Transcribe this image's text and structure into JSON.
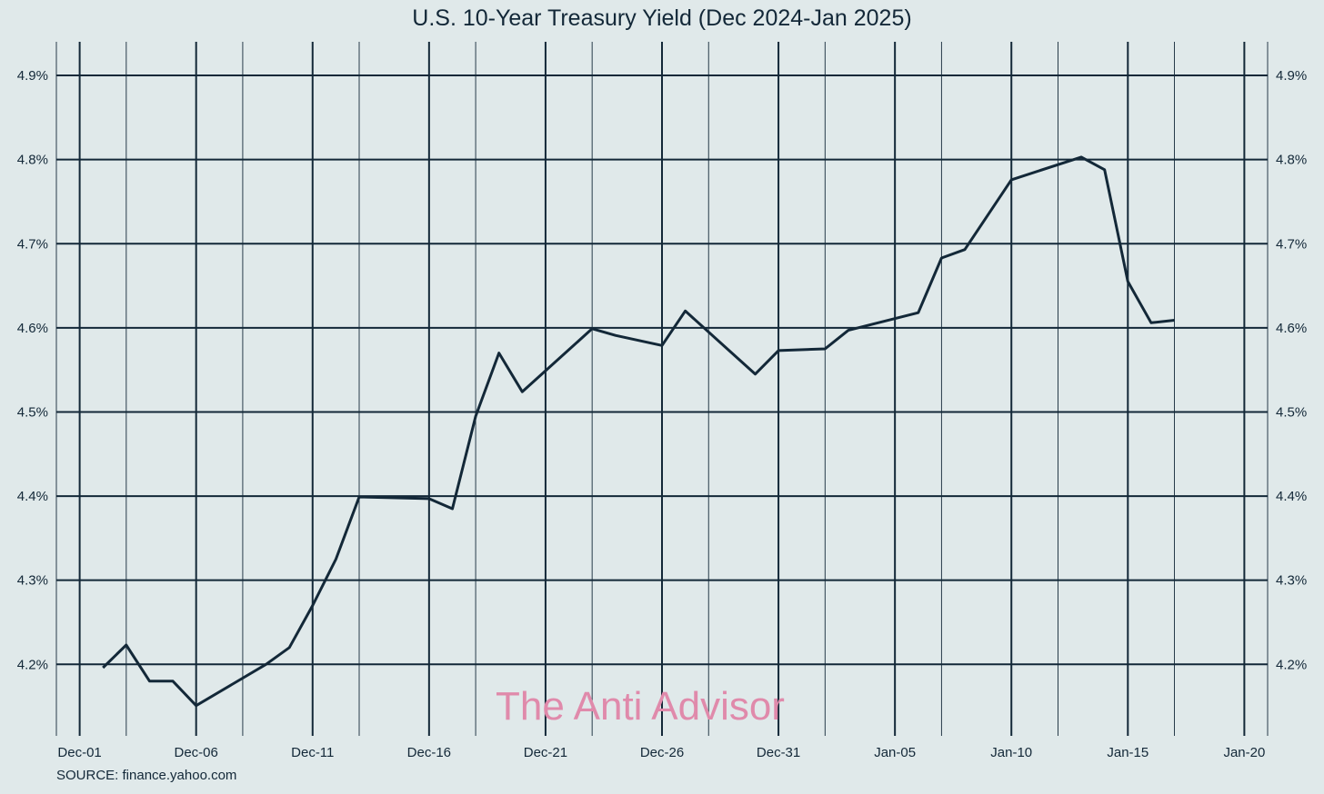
{
  "chart_data": {
    "type": "line",
    "title": "U.S. 10-Year Treasury Yield (Dec 2024-Jan 2025)",
    "xlabel": "",
    "ylabel": "",
    "source": "SOURCE: finance.yahoo.com",
    "watermark": "The Anti Advisor",
    "ylim": [
      4.115,
      4.94
    ],
    "xlim": [
      "2024-11-30",
      "2025-01-21"
    ],
    "y_ticks": [
      4.2,
      4.3,
      4.4,
      4.5,
      4.6,
      4.7,
      4.8,
      4.9
    ],
    "y_tick_labels": [
      "4.2%",
      "4.3%",
      "4.4%",
      "4.5%",
      "4.6%",
      "4.7%",
      "4.8%",
      "4.9%"
    ],
    "x_ticks": [
      "2024-12-01",
      "2024-12-06",
      "2024-12-11",
      "2024-12-16",
      "2024-12-21",
      "2024-12-26",
      "2024-12-31",
      "2025-01-05",
      "2025-01-10",
      "2025-01-15",
      "2025-01-20"
    ],
    "x_tick_labels": [
      "Dec-01",
      "Dec-06",
      "Dec-11",
      "Dec-16",
      "Dec-21",
      "Dec-26",
      "Dec-31",
      "Jan-05",
      "Jan-10",
      "Jan-15",
      "Jan-20"
    ],
    "grid": true,
    "y_axis_labels_both_sides": true,
    "colors": {
      "background": "#e0e9ea",
      "line": "#132838",
      "grid": "#132838",
      "watermark": "#e08aab"
    },
    "series": [
      {
        "points": [
          {
            "x": "2024-12-02",
            "y": 4.196
          },
          {
            "x": "2024-12-03",
            "y": 4.223
          },
          {
            "x": "2024-12-04",
            "y": 4.18
          },
          {
            "x": "2024-12-05",
            "y": 4.18
          },
          {
            "x": "2024-12-06",
            "y": 4.151
          },
          {
            "x": "2024-12-09",
            "y": 4.2
          },
          {
            "x": "2024-12-10",
            "y": 4.22
          },
          {
            "x": "2024-12-11",
            "y": 4.27
          },
          {
            "x": "2024-12-12",
            "y": 4.325
          },
          {
            "x": "2024-12-13",
            "y": 4.399
          },
          {
            "x": "2024-12-16",
            "y": 4.397
          },
          {
            "x": "2024-12-17",
            "y": 4.385
          },
          {
            "x": "2024-12-18",
            "y": 4.495
          },
          {
            "x": "2024-12-19",
            "y": 4.57
          },
          {
            "x": "2024-12-20",
            "y": 4.524
          },
          {
            "x": "2024-12-23",
            "y": 4.599
          },
          {
            "x": "2024-12-24",
            "y": 4.591
          },
          {
            "x": "2024-12-26",
            "y": 4.579
          },
          {
            "x": "2024-12-27",
            "y": 4.62
          },
          {
            "x": "2024-12-30",
            "y": 4.545
          },
          {
            "x": "2024-12-31",
            "y": 4.573
          },
          {
            "x": "2025-01-02",
            "y": 4.575
          },
          {
            "x": "2025-01-03",
            "y": 4.597
          },
          {
            "x": "2025-01-06",
            "y": 4.618
          },
          {
            "x": "2025-01-07",
            "y": 4.683
          },
          {
            "x": "2025-01-08",
            "y": 4.693
          },
          {
            "x": "2025-01-10",
            "y": 4.776
          },
          {
            "x": "2025-01-13",
            "y": 4.803
          },
          {
            "x": "2025-01-14",
            "y": 4.788
          },
          {
            "x": "2025-01-15",
            "y": 4.655
          },
          {
            "x": "2025-01-16",
            "y": 4.606
          },
          {
            "x": "2025-01-17",
            "y": 4.609
          }
        ]
      }
    ]
  }
}
